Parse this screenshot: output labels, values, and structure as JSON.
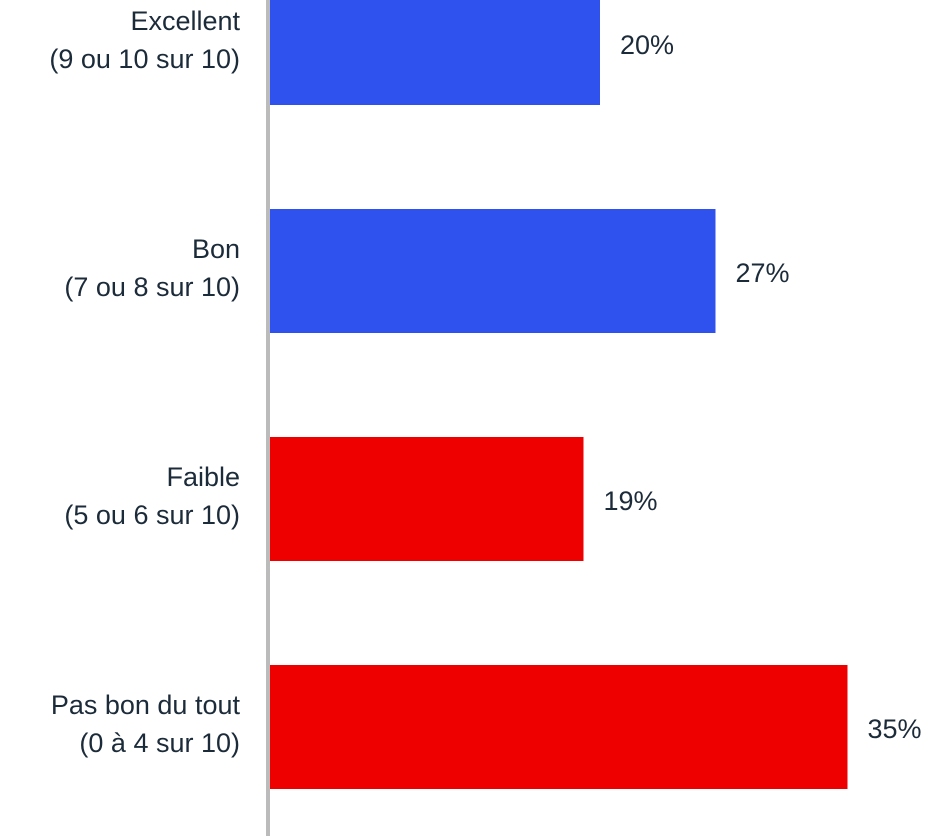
{
  "chart_data": {
    "type": "bar",
    "orientation": "horizontal",
    "categories": [
      [
        "Excellent",
        "(9 ou 10 sur 10)"
      ],
      [
        "Bon",
        "(7 ou 8 sur 10)"
      ],
      [
        "Faible",
        "(5 ou 6 sur 10)"
      ],
      [
        "Pas bon du tout",
        "(0 à 4 sur 10)"
      ]
    ],
    "values": [
      20,
      27,
      19,
      35
    ],
    "value_labels": [
      "20%",
      "27%",
      "19%",
      "35%"
    ],
    "colors": [
      "#2f52ef",
      "#2f52ef",
      "#ee0000",
      "#ee0000"
    ]
  }
}
